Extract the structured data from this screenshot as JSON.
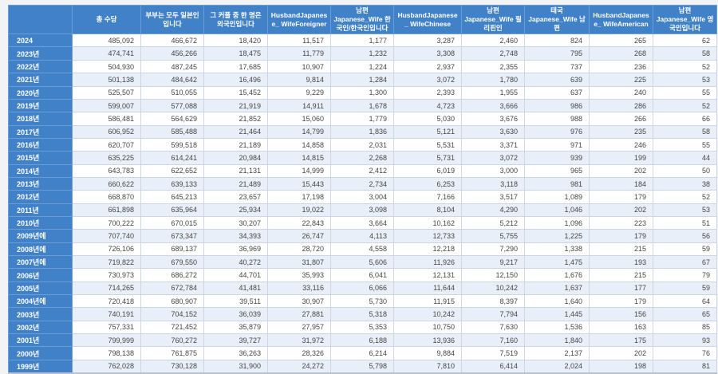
{
  "chart_data": {
    "type": "table",
    "corner_label": "",
    "columns": [
      "총 수당",
      "부부는 모두 일본인입니다",
      "그 커플 중 한 명은 외국인입니다",
      "HusbandJapanese_ WifeForeigner",
      "남편 Japanese_Wife 한국인/한국인입니다",
      "HusbandJapanese_ WifeChinese",
      "남편 Japanese_Wife 필리핀인",
      "태국Japanese_Wife 남편",
      "HusbandJapanese_ WifeAmerican",
      "남편 Japanese_Wife 영국인입니다"
    ],
    "rows": [
      {
        "year": "2024",
        "values": [
          "485,092",
          "466,672",
          "18,420",
          "11,517",
          "1,177",
          "3,287",
          "2,460",
          "824",
          "265",
          "62"
        ]
      },
      {
        "year": "2023년",
        "values": [
          "474,741",
          "456,266",
          "18,475",
          "11,779",
          "1,232",
          "3,308",
          "2,748",
          "795",
          "268",
          "58"
        ]
      },
      {
        "year": "2022년",
        "values": [
          "504,930",
          "487,245",
          "17,685",
          "10,907",
          "1,224",
          "2,937",
          "2,355",
          "737",
          "236",
          "52"
        ]
      },
      {
        "year": "2021년",
        "values": [
          "501,138",
          "484,642",
          "16,496",
          "9,814",
          "1,284",
          "3,072",
          "1,780",
          "639",
          "225",
          "53"
        ]
      },
      {
        "year": "2020년",
        "values": [
          "525,507",
          "510,055",
          "15,452",
          "9,229",
          "1,300",
          "2,393",
          "1,955",
          "637",
          "240",
          "55"
        ]
      },
      {
        "year": "2019년",
        "values": [
          "599,007",
          "577,088",
          "21,919",
          "14,911",
          "1,678",
          "4,723",
          "3,666",
          "986",
          "286",
          "52"
        ]
      },
      {
        "year": "2018년",
        "values": [
          "586,481",
          "564,629",
          "21,852",
          "15,060",
          "1,779",
          "5,030",
          "3,676",
          "988",
          "266",
          "66"
        ]
      },
      {
        "year": "2017년",
        "values": [
          "606,952",
          "585,488",
          "21,464",
          "14,799",
          "1,836",
          "5,121",
          "3,630",
          "976",
          "235",
          "58"
        ]
      },
      {
        "year": "2016년",
        "values": [
          "620,707",
          "599,518",
          "21,189",
          "14,858",
          "2,031",
          "5,531",
          "3,371",
          "971",
          "246",
          "55"
        ]
      },
      {
        "year": "2015년",
        "values": [
          "635,225",
          "614,241",
          "20,984",
          "14,815",
          "2,268",
          "5,731",
          "3,072",
          "939",
          "199",
          "44"
        ]
      },
      {
        "year": "2014년",
        "values": [
          "643,783",
          "622,652",
          "21,131",
          "14,999",
          "2,412",
          "6,019",
          "3,000",
          "965",
          "202",
          "50"
        ]
      },
      {
        "year": "2013년",
        "values": [
          "660,622",
          "639,133",
          "21,489",
          "15,443",
          "2,734",
          "6,253",
          "3,118",
          "981",
          "184",
          "38"
        ]
      },
      {
        "year": "2012년",
        "values": [
          "668,870",
          "645,213",
          "23,657",
          "17,198",
          "3,004",
          "7,166",
          "3,517",
          "1,089",
          "179",
          "52"
        ]
      },
      {
        "year": "2011년",
        "values": [
          "661,898",
          "635,964",
          "25,934",
          "19,022",
          "3,098",
          "8,104",
          "4,290",
          "1,046",
          "202",
          "53"
        ]
      },
      {
        "year": "2010년",
        "values": [
          "700,222",
          "670,015",
          "30,207",
          "22,843",
          "3,664",
          "10,162",
          "5,212",
          "1,096",
          "223",
          "51"
        ]
      },
      {
        "year": "2009년에",
        "values": [
          "707,740",
          "673,347",
          "34,393",
          "26,747",
          "4,113",
          "12,733",
          "5,755",
          "1,225",
          "179",
          "56"
        ]
      },
      {
        "year": "2008년에",
        "values": [
          "726,106",
          "689,137",
          "36,969",
          "28,720",
          "4,558",
          "12,218",
          "7,290",
          "1,338",
          "215",
          "59"
        ]
      },
      {
        "year": "2007년에",
        "values": [
          "719,822",
          "679,550",
          "40,272",
          "31,807",
          "5,606",
          "11,926",
          "9,217",
          "1,475",
          "193",
          "67"
        ]
      },
      {
        "year": "2006년",
        "values": [
          "730,973",
          "686,272",
          "44,701",
          "35,993",
          "6,041",
          "12,131",
          "12,150",
          "1,676",
          "215",
          "79"
        ]
      },
      {
        "year": "2005년",
        "values": [
          "714,265",
          "672,784",
          "41,481",
          "33,116",
          "6,066",
          "11,644",
          "10,242",
          "1,637",
          "177",
          "59"
        ]
      },
      {
        "year": "2004년에",
        "values": [
          "720,418",
          "680,907",
          "39,511",
          "30,907",
          "5,730",
          "11,915",
          "8,397",
          "1,640",
          "179",
          "64"
        ]
      },
      {
        "year": "2003년",
        "values": [
          "740,191",
          "704,152",
          "36,039",
          "27,881",
          "5,318",
          "10,242",
          "7,794",
          "1,445",
          "156",
          "65"
        ]
      },
      {
        "year": "2002년",
        "values": [
          "757,331",
          "721,452",
          "35,879",
          "27,957",
          "5,353",
          "10,750",
          "7,630",
          "1,536",
          "163",
          "85"
        ]
      },
      {
        "year": "2001년",
        "values": [
          "799,999",
          "760,272",
          "39,727",
          "31,972",
          "6,188",
          "13,936",
          "7,160",
          "1,840",
          "175",
          "93"
        ]
      },
      {
        "year": "2000년",
        "values": [
          "798,138",
          "761,875",
          "36,263",
          "28,326",
          "6,214",
          "9,884",
          "7,519",
          "2,137",
          "202",
          "76"
        ]
      },
      {
        "year": "1999년",
        "values": [
          "762,028",
          "730,128",
          "31,900",
          "24,272",
          "5,798",
          "7,810",
          "6,414",
          "2,024",
          "198",
          "81"
        ]
      }
    ]
  },
  "colors": {
    "header_blue": "#4081c8",
    "row_stripe": "#e9eff8",
    "cell_border": "#ccd6e4",
    "cell_text": "#454545"
  }
}
